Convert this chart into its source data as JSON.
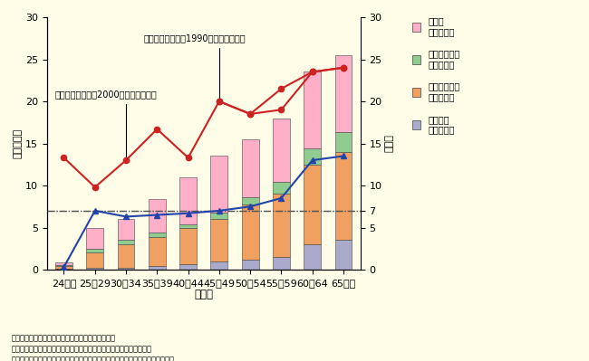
{
  "categories": [
    "24以下",
    "25〜29",
    "30〜34",
    "35〜39",
    "40〜44",
    "45〜49",
    "50〜54",
    "55〜59",
    "60〜64",
    "65以上"
  ],
  "bar_sec": [
    0.1,
    0.2,
    0.25,
    0.4,
    0.7,
    1.0,
    1.2,
    1.5,
    3.0,
    3.5
  ],
  "bar_teiki": [
    0.3,
    1.8,
    2.8,
    3.5,
    4.2,
    5.0,
    6.5,
    7.5,
    9.5,
    10.5
  ],
  "bar_tsuka": [
    0.1,
    0.45,
    0.45,
    0.55,
    0.5,
    0.75,
    0.9,
    1.4,
    1.9,
    2.3
  ],
  "bar_sonota": [
    0.4,
    2.55,
    2.5,
    3.95,
    5.6,
    6.75,
    6.9,
    7.6,
    9.1,
    9.2
  ],
  "line_2000": [
    13.3,
    9.8,
    13.0,
    16.7,
    13.3,
    20.0,
    18.5,
    19.0,
    23.5,
    24.0
  ],
  "line_1990_x_idx": [
    5,
    6,
    7,
    8,
    9
  ],
  "line_1990_y": [
    20.0,
    18.5,
    21.5,
    23.5,
    24.0
  ],
  "blue_line": [
    0.3,
    7.0,
    6.3,
    6.5,
    6.7,
    7.0,
    7.5,
    8.5,
    13.0,
    13.5
  ],
  "ylim": [
    0,
    30
  ],
  "hline_y": 7,
  "bg_color": "#FFFCE8",
  "color_sec": "#AAAACC",
  "color_teiki": "#F0A060",
  "color_tsuka": "#90CC90",
  "color_sonota": "#FFB0C8",
  "color_red": "#CC2222",
  "color_blue": "#2244AA",
  "ylabel_left": "（百万円）",
  "ylabel_right": "（％）",
  "xlabel": "（歳）",
  "ann_2000_text": "有価証券の割合（2000年）（右目盛）",
  "ann_1990_text": "有価証券の割合（1990年）（右目盛）",
  "note1": "（備考）１．総務省「貯蓄動向調査」により作成。",
  "note2": "　　　　２．勤労者世帯１世帯当たりの世帯主の年齢別貯蓄現在高。",
  "note3": "　　　　３．「有価証券の割合」とは、貯蓄現在高に占める有価証券の現在高。",
  "leg_sonota": "その他\n（左目盛）",
  "leg_tsuka": "通貨性預貯金\n（左目盛）",
  "leg_teiki": "定期性預貯金\n（左目盛）",
  "leg_sec": "有価証券\n（左目盛）"
}
